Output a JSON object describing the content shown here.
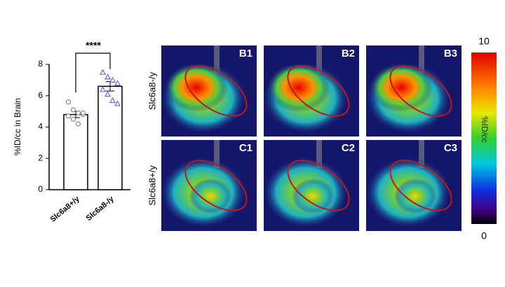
{
  "chart_data": {
    "type": "bar",
    "y_label": "%ID/cc in Brain",
    "categories": [
      "Slc6a8+/y",
      "Slc6a8-/y"
    ],
    "values": [
      4.8,
      6.6
    ],
    "errors": [
      0.2,
      0.3
    ],
    "points": [
      [
        5.6,
        5.1,
        4.9,
        4.8,
        4.7,
        4.5,
        4.2,
        4.9
      ],
      [
        7.5,
        7.2,
        7.0,
        6.8,
        6.4,
        6.1,
        5.7,
        5.5
      ]
    ],
    "point_colors": [
      "#8a8a8a",
      "#6b6bd6"
    ],
    "significance": "****",
    "ylim": [
      0,
      8
    ],
    "yticks": [
      0,
      2,
      4,
      6,
      8
    ]
  },
  "rows": [
    "Slc6a8-/y",
    "Slc6a8+/y"
  ],
  "panels": [
    {
      "label": "B1"
    },
    {
      "label": "B2"
    },
    {
      "label": "B3"
    },
    {
      "label": "C1"
    },
    {
      "label": "C2"
    },
    {
      "label": "C3"
    }
  ],
  "colorbar": {
    "label": "%ID/cc",
    "max": "10",
    "min": "0"
  }
}
